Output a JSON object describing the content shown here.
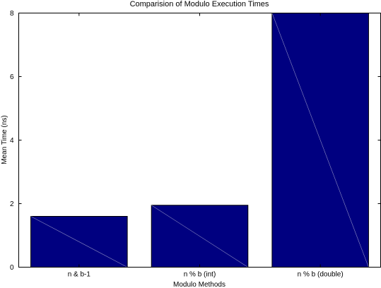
{
  "chart_data": {
    "type": "bar",
    "title": "Comparision of Modulo Execution Times",
    "xlabel": "Modulo Methods",
    "ylabel": "Mean Time (ns)",
    "categories": [
      "n & b-1",
      "n % b (int)",
      "n % b (double)"
    ],
    "values": [
      1.6,
      1.95,
      8.0
    ],
    "ylim": [
      0,
      8
    ],
    "yticks": [
      "0",
      "2",
      "4",
      "6",
      "8"
    ],
    "bar_color": "#000080",
    "grid": false,
    "legend": "none"
  }
}
